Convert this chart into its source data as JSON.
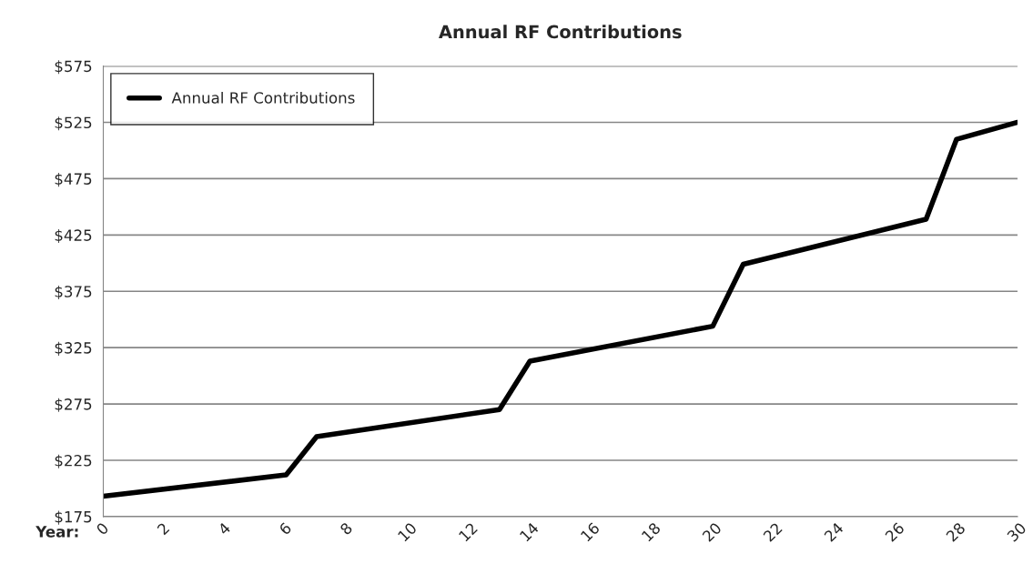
{
  "chart_data": {
    "type": "line",
    "title": "Annual RF Contributions",
    "xlabel": "Year:",
    "x": [
      0,
      6,
      7,
      13,
      14,
      20,
      21,
      27,
      28,
      30
    ],
    "series": [
      {
        "name": "Annual RF Contributions",
        "color": "#000000",
        "values": [
          193,
          212,
          246,
          270,
          313,
          344,
          399,
          439,
          510,
          525
        ]
      }
    ],
    "xlim": [
      0,
      30
    ],
    "xticks": [
      0,
      2,
      4,
      6,
      8,
      10,
      12,
      14,
      16,
      18,
      20,
      22,
      24,
      26,
      28,
      30
    ],
    "ylim": [
      175,
      575
    ],
    "yticks": [
      {
        "value": 175,
        "label": "$175"
      },
      {
        "value": 225,
        "label": "$225"
      },
      {
        "value": 275,
        "label": "$275"
      },
      {
        "value": 325,
        "label": "$325"
      },
      {
        "value": 375,
        "label": "$375"
      },
      {
        "value": 425,
        "label": "$425"
      },
      {
        "value": 475,
        "label": "$475"
      },
      {
        "value": 525,
        "label": "$525"
      },
      {
        "value": 575,
        "label": "$575"
      }
    ],
    "grid": "y",
    "legend": "top left",
    "marker": "none",
    "line_style": "solid"
  }
}
